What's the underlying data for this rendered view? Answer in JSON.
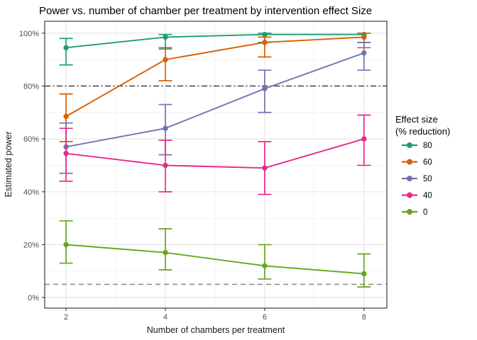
{
  "chart_data": {
    "type": "line",
    "title": "Power vs. number of chamber per treatment by intervention effect Size",
    "xlabel": "Number of chambers per treatment",
    "ylabel": "Estimated power",
    "x": [
      2,
      4,
      6,
      8
    ],
    "x_tick_labels": [
      "2",
      "4",
      "6",
      "8"
    ],
    "x_minor_values": [
      3,
      5,
      7
    ],
    "y_tick_values": [
      0,
      20,
      40,
      60,
      80,
      100
    ],
    "y_tick_labels": [
      "0%",
      "20%",
      "40%",
      "60%",
      "80%",
      "100%"
    ],
    "y_minor_values": [
      10,
      30,
      50,
      70,
      90
    ],
    "xlim": [
      1.57,
      8.46
    ],
    "ylim": [
      -4,
      104.5
    ],
    "grid": "on",
    "legend": {
      "position": "right",
      "title_lines": [
        "Effect size",
        "(% reduction)"
      ],
      "entries": [
        "80",
        "60",
        "50",
        "40",
        "0"
      ]
    },
    "reference_lines": [
      {
        "y": 80,
        "style": "dashdot",
        "color": "#4f4f4f"
      },
      {
        "y": 5,
        "style": "dashed",
        "color": "#8f8f8f"
      }
    ],
    "series": [
      {
        "name": "80",
        "color": "#1B9E77",
        "values": [
          94.5,
          98.5,
          99.5,
          99.5
        ],
        "err_low": [
          88,
          94,
          96.5,
          96.5
        ],
        "err_high": [
          98,
          99.5,
          100,
          100
        ]
      },
      {
        "name": "60",
        "color": "#D95F02",
        "values": [
          68.5,
          90,
          96.5,
          98.5
        ],
        "err_low": [
          59,
          82,
          91,
          94.5
        ],
        "err_high": [
          77,
          94.5,
          98.5,
          100
        ]
      },
      {
        "name": "50",
        "color": "#7570B3",
        "values": [
          57,
          64,
          79,
          92.5
        ],
        "err_low": [
          47,
          54,
          70,
          86
        ],
        "err_high": [
          66,
          73,
          86,
          96.5
        ]
      },
      {
        "name": "40",
        "color": "#E7298A",
        "values": [
          54.5,
          50,
          49,
          60
        ],
        "err_low": [
          44,
          40,
          39,
          50
        ],
        "err_high": [
          64,
          59.5,
          59,
          69
        ]
      },
      {
        "name": "0",
        "color": "#66A61E",
        "values": [
          20,
          17,
          12,
          9
        ],
        "err_low": [
          13,
          10.5,
          7,
          4
        ],
        "err_high": [
          29,
          26,
          20,
          16.5
        ]
      }
    ],
    "colors": {
      "grid_major": "#e4e4e4",
      "grid_minor": "#f0f0f0",
      "panel_border": "#3c3c3c",
      "tick": "#333333"
    }
  }
}
